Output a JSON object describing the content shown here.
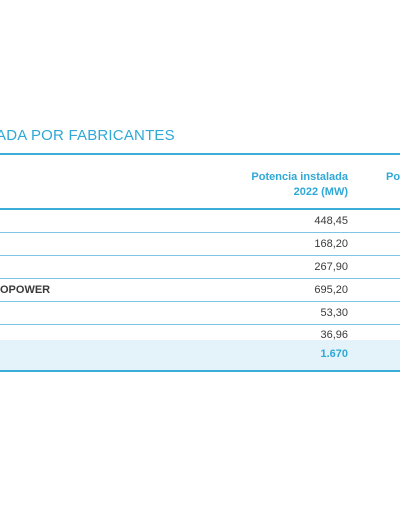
{
  "title": "ADA POR FABRICANTES",
  "columns": {
    "col1_line1": "Potencia instalada",
    "col1_line2": "2022 (MW)",
    "col2_partial": "Po"
  },
  "rows": [
    {
      "name": "",
      "value": "448,45"
    },
    {
      "name": "",
      "value": "168,20"
    },
    {
      "name": "",
      "value": "267,90"
    },
    {
      "name": "OPOWER",
      "value": "695,20"
    },
    {
      "name": "",
      "value": "53,30"
    },
    {
      "name": "",
      "value": "36,96"
    }
  ],
  "total": {
    "value": "1.670"
  },
  "colors": {
    "accent": "#2fa8d6",
    "rule": "#3aaed8",
    "total_bg": "#e4f3fa"
  }
}
